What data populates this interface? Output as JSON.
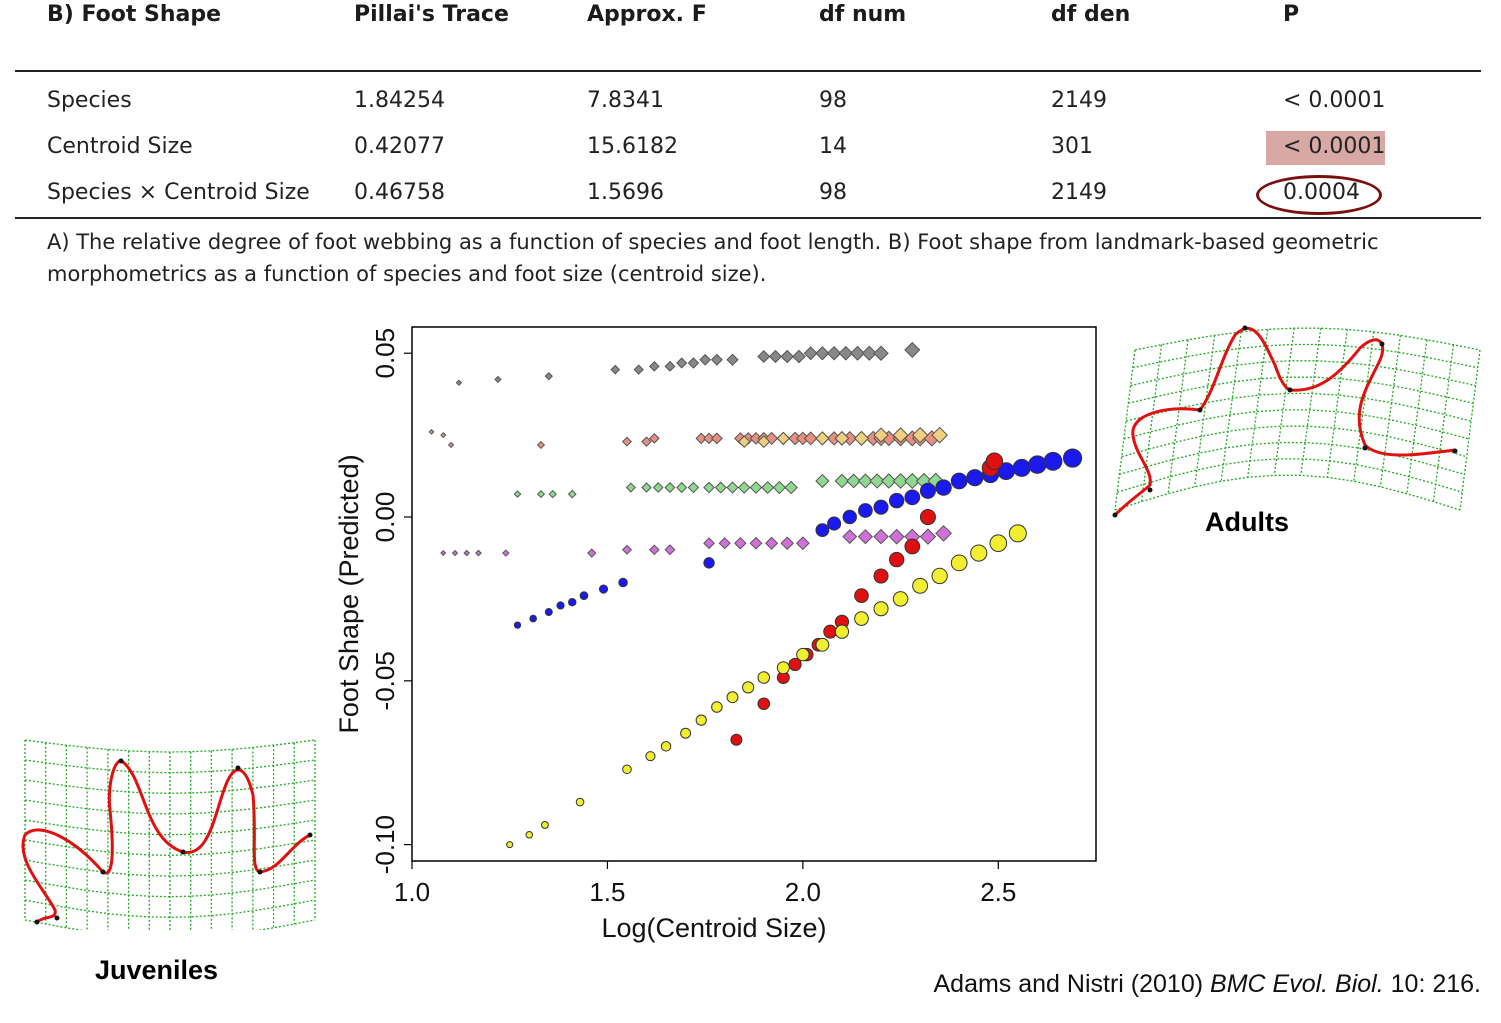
{
  "table": {
    "headers": [
      "B) Foot Shape",
      "Pillai's Trace",
      "Approx. F",
      "df num",
      "df den",
      "P"
    ],
    "rows": [
      [
        "Species",
        "1.84254",
        "7.8341",
        "98",
        "2149",
        "< 0.0001"
      ],
      [
        "Centroid Size",
        "0.42077",
        "15.6182",
        "14",
        "301",
        "< 0.0001"
      ],
      [
        "Species × Centroid Size",
        "0.46758",
        "1.5696",
        "98",
        "2149",
        "0.0004"
      ]
    ],
    "highlight_color": "#d7a8a4",
    "circle_color": "#7a0f0f"
  },
  "caption": "A) The relative degree of foot webbing as a function of species and foot length. B) Foot shape from landmark-based geometric morphometrics as a function of species and foot size (centroid size).",
  "labels": {
    "adults": "Adults",
    "juveniles": "Juveniles"
  },
  "citation": {
    "authors": "Adams and Nistri (2010) ",
    "journal_1": "BMC ",
    "journal_2": "Evol. Biol.",
    "rest": " 10: 216."
  },
  "chart_data": {
    "type": "scatter",
    "xlabel": "Log(Centroid Size)",
    "ylabel": "Foot Shape (Predicted)",
    "xlim": [
      1.0,
      2.75
    ],
    "ylim": [
      -0.105,
      0.058
    ],
    "xticks": [
      "1.0",
      "1.5",
      "2.0",
      "2.5"
    ],
    "xtick_values": [
      1.0,
      1.5,
      2.0,
      2.5
    ],
    "yticks": [
      "-0.10",
      "-0.05",
      "0.00",
      "0.05"
    ],
    "ytick_values": [
      -0.1,
      -0.05,
      0.0,
      0.05
    ],
    "series": [
      {
        "color": "#888888",
        "marker": "diamond",
        "x": [
          1.12,
          1.22,
          1.35,
          1.52,
          1.58,
          1.62,
          1.66,
          1.69,
          1.72,
          1.75,
          1.78,
          1.82,
          1.9,
          1.93,
          1.96,
          1.99,
          2.02,
          2.05,
          2.08,
          2.11,
          2.14,
          2.17,
          2.2,
          2.28
        ],
        "y": [
          0.041,
          0.042,
          0.043,
          0.045,
          0.045,
          0.046,
          0.046,
          0.047,
          0.047,
          0.048,
          0.048,
          0.048,
          0.049,
          0.049,
          0.049,
          0.049,
          0.05,
          0.05,
          0.05,
          0.05,
          0.05,
          0.05,
          0.05,
          0.051
        ]
      },
      {
        "color": "#e89080",
        "marker": "diamond",
        "x": [
          1.05,
          1.08,
          1.1,
          1.33,
          1.55,
          1.6,
          1.62,
          1.74,
          1.76,
          1.78,
          1.84,
          1.86,
          1.88,
          1.9,
          1.92,
          1.95,
          1.98,
          2.0,
          2.02,
          2.05,
          2.08,
          2.1,
          2.12,
          2.15,
          2.18,
          2.2,
          2.22,
          2.25,
          2.28,
          2.3,
          2.33
        ],
        "y": [
          0.026,
          0.025,
          0.022,
          0.022,
          0.023,
          0.023,
          0.024,
          0.024,
          0.024,
          0.024,
          0.024,
          0.024,
          0.024,
          0.024,
          0.024,
          0.024,
          0.024,
          0.024,
          0.024,
          0.024,
          0.024,
          0.024,
          0.024,
          0.024,
          0.024,
          0.024,
          0.024,
          0.024,
          0.024,
          0.024,
          0.024
        ]
      },
      {
        "color": "#f0d080",
        "marker": "diamond",
        "x": [
          1.85,
          1.9,
          1.95,
          2.05,
          2.1,
          2.15,
          2.2,
          2.25,
          2.3,
          2.35
        ],
        "y": [
          0.023,
          0.023,
          0.024,
          0.024,
          0.024,
          0.024,
          0.025,
          0.025,
          0.025,
          0.025
        ]
      },
      {
        "color": "#8fd88f",
        "marker": "diamond",
        "x": [
          1.27,
          1.33,
          1.36,
          1.41,
          1.56,
          1.6,
          1.63,
          1.66,
          1.69,
          1.72,
          1.76,
          1.79,
          1.82,
          1.85,
          1.88,
          1.91,
          1.94,
          1.97,
          2.05,
          2.1,
          2.13,
          2.16,
          2.19,
          2.22,
          2.25,
          2.28,
          2.31,
          2.34
        ],
        "y": [
          0.007,
          0.007,
          0.007,
          0.007,
          0.009,
          0.009,
          0.009,
          0.009,
          0.009,
          0.009,
          0.009,
          0.009,
          0.009,
          0.009,
          0.009,
          0.009,
          0.009,
          0.009,
          0.011,
          0.011,
          0.011,
          0.011,
          0.011,
          0.011,
          0.011,
          0.011,
          0.011,
          0.011
        ]
      },
      {
        "color": "#d070d8",
        "marker": "diamond",
        "x": [
          1.08,
          1.11,
          1.14,
          1.17,
          1.24,
          1.46,
          1.55,
          1.62,
          1.66,
          1.76,
          1.8,
          1.84,
          1.88,
          1.92,
          1.96,
          2.0,
          2.12,
          2.16,
          2.2,
          2.24,
          2.28,
          2.32,
          2.36
        ],
        "y": [
          -0.011,
          -0.011,
          -0.011,
          -0.011,
          -0.011,
          -0.011,
          -0.01,
          -0.01,
          -0.01,
          -0.008,
          -0.008,
          -0.008,
          -0.008,
          -0.008,
          -0.008,
          -0.008,
          -0.006,
          -0.006,
          -0.006,
          -0.006,
          -0.006,
          -0.006,
          -0.005
        ]
      },
      {
        "color": "#1a1aee",
        "marker": "circle",
        "x": [
          1.27,
          1.31,
          1.35,
          1.38,
          1.41,
          1.44,
          1.49,
          1.54,
          1.76,
          2.05,
          2.08,
          2.12,
          2.16,
          2.2,
          2.24,
          2.28,
          2.32,
          2.36,
          2.4,
          2.44,
          2.48,
          2.52,
          2.56,
          2.6,
          2.64,
          2.69
        ],
        "y": [
          -0.033,
          -0.031,
          -0.029,
          -0.027,
          -0.026,
          -0.024,
          -0.022,
          -0.02,
          -0.014,
          -0.004,
          -0.002,
          0.0,
          0.002,
          0.003,
          0.005,
          0.006,
          0.008,
          0.009,
          0.011,
          0.012,
          0.013,
          0.014,
          0.015,
          0.016,
          0.017,
          0.018
        ]
      },
      {
        "color": "#e01010",
        "marker": "circle",
        "x": [
          1.83,
          1.9,
          1.95,
          1.98,
          2.01,
          2.04,
          2.07,
          2.1,
          2.15,
          2.2,
          2.24,
          2.28,
          2.32,
          2.48,
          2.49
        ],
        "y": [
          -0.068,
          -0.057,
          -0.049,
          -0.045,
          -0.042,
          -0.039,
          -0.035,
          -0.032,
          -0.024,
          -0.018,
          -0.013,
          -0.009,
          0.0,
          0.015,
          0.017
        ]
      },
      {
        "color": "#f2ee30",
        "marker": "circle",
        "x": [
          1.25,
          1.3,
          1.34,
          1.43,
          1.55,
          1.61,
          1.65,
          1.7,
          1.74,
          1.78,
          1.82,
          1.86,
          1.9,
          1.95,
          2.0,
          2.05,
          2.1,
          2.15,
          2.2,
          2.25,
          2.3,
          2.35,
          2.4,
          2.45,
          2.5,
          2.55
        ],
        "y": [
          -0.1,
          -0.097,
          -0.094,
          -0.087,
          -0.077,
          -0.073,
          -0.07,
          -0.066,
          -0.062,
          -0.058,
          -0.055,
          -0.052,
          -0.049,
          -0.046,
          -0.042,
          -0.039,
          -0.035,
          -0.031,
          -0.028,
          -0.025,
          -0.021,
          -0.018,
          -0.014,
          -0.011,
          -0.008,
          -0.005
        ]
      }
    ]
  }
}
